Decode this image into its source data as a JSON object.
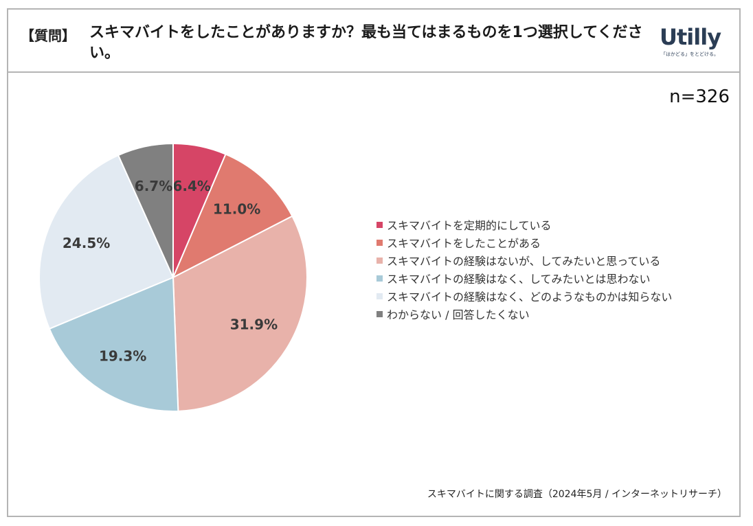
{
  "header": {
    "tag": "【質問】",
    "question": "スキマバイトをしたことがありますか？最も当てはまるものを1つ選択してください。",
    "logo_text": "Utilly",
    "logo_sub": "「はかどる」をとどける。"
  },
  "sample_size": "n=326",
  "source": "スキマバイトに関する調査（2024年5月 / インターネットリサーチ）",
  "chart_data": {
    "type": "pie",
    "title": "",
    "unit": "%",
    "legend_position": "right",
    "slices": [
      {
        "label": "スキマバイトを定期的にしている",
        "value": 6.4,
        "display": "6.4%",
        "color": "#d64566"
      },
      {
        "label": "スキマバイトをしたことがある",
        "value": 11.0,
        "display": "11.0%",
        "color": "#e07a6f"
      },
      {
        "label": "スキマバイトの経験はないが、してみたいと思っている",
        "value": 31.9,
        "display": "31.9%",
        "color": "#e8b2aa"
      },
      {
        "label": "スキマバイトの経験はなく、してみたいとは思わない",
        "value": 19.3,
        "display": "19.3%",
        "color": "#a8cad8"
      },
      {
        "label": "スキマバイトの経験はなく、どのようなものかは知らない",
        "value": 24.5,
        "display": "24.5%",
        "color": "#e2eaf2"
      },
      {
        "label": "わからない / 回答したくない",
        "value": 6.7,
        "display": "6.7%",
        "color": "#808080"
      }
    ]
  }
}
